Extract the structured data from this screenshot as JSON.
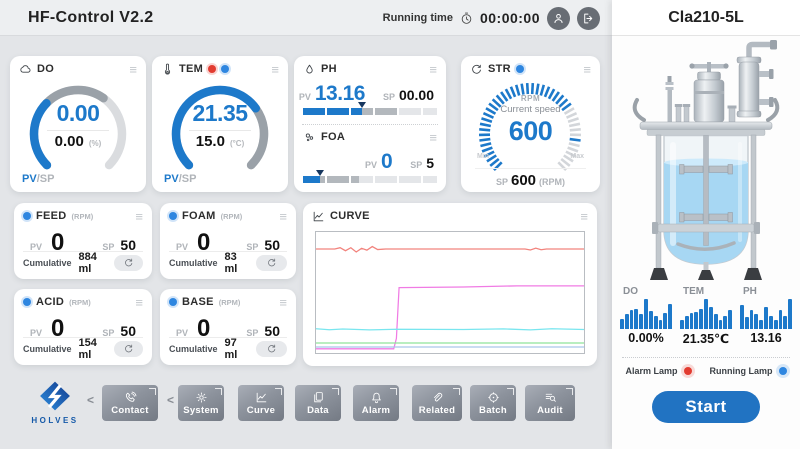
{
  "topbar": {
    "title": "HF-Control V2.2",
    "running_label": "Running time",
    "time": "00:00:00"
  },
  "cards": {
    "do": {
      "title": "DO",
      "pv": "0.00",
      "sp": "0.00",
      "unit": "(%)",
      "pv_label": "PV",
      "sp_label": "/SP",
      "fraction": 0.33
    },
    "tem": {
      "title": "TEM",
      "pv": "21.35",
      "sp": "15.0",
      "unit": "(°C)",
      "pv_label": "PV",
      "sp_label": "/SP",
      "fraction": 0.7
    },
    "ph": {
      "title": "PH",
      "pv_label": "PV",
      "pv": "13.16",
      "sp_label": "SP",
      "sp": "00.00",
      "fill_pct": 44,
      "mid_pct": 72
    },
    "foa": {
      "title": "FOA",
      "pv_label": "PV",
      "pv": "0",
      "sp_label": "SP",
      "sp": "5",
      "fill_pct": 13,
      "mid_pct": 42
    },
    "str": {
      "title": "STR",
      "rpm_label": "RPM",
      "sub_label": "Current speed",
      "value": "600",
      "sp_label": "SP",
      "sp": "600",
      "sp_unit": "(RPM)",
      "fraction": 0.72,
      "sp_mark": 0.86,
      "min_label": "Min",
      "max_label": "Max"
    }
  },
  "pumps": [
    {
      "title": "FEED",
      "unit": "(RPM)",
      "pv_label": "PV",
      "pv": "0",
      "sp_label": "SP",
      "sp": "50",
      "cum_label": "Cumulative",
      "cum": "884 ml"
    },
    {
      "title": "FOAM",
      "unit": "(RPM)",
      "pv_label": "PV",
      "pv": "0",
      "sp_label": "SP",
      "sp": "50",
      "cum_label": "Cumulative",
      "cum": "83 ml"
    },
    {
      "title": "ACID",
      "unit": "(RPM)",
      "pv_label": "PV",
      "pv": "0",
      "sp_label": "SP",
      "sp": "50",
      "cum_label": "Cumulative",
      "cum": "154 ml"
    },
    {
      "title": "BASE",
      "unit": "(RPM)",
      "pv_label": "PV",
      "pv": "0",
      "sp_label": "SP",
      "sp": "50",
      "cum_label": "Cumulative",
      "cum": "97 ml"
    }
  ],
  "curve": {
    "title": "CURVE"
  },
  "chart_data": {
    "type": "line",
    "title": "CURVE",
    "xlabel": "",
    "ylabel": "",
    "x_range": [
      0,
      100
    ],
    "y_range": [
      0,
      100
    ],
    "grid": false,
    "legend": "none",
    "series": [
      {
        "name": "red",
        "color": "#f2837d",
        "points": [
          [
            0,
            86
          ],
          [
            7,
            86
          ],
          [
            9,
            87
          ],
          [
            11,
            84.5
          ],
          [
            13,
            87
          ],
          [
            15,
            83.5
          ],
          [
            17,
            86.5
          ],
          [
            19,
            85
          ],
          [
            21,
            88
          ],
          [
            23,
            85.5
          ],
          [
            26,
            86
          ],
          [
            78,
            86
          ],
          [
            80,
            85.2
          ],
          [
            82,
            86.6
          ],
          [
            84,
            85.3
          ],
          [
            86,
            86
          ],
          [
            100,
            86
          ]
        ]
      },
      {
        "name": "magenta",
        "color": "#f07be4",
        "points": [
          [
            0,
            3.5
          ],
          [
            29,
            3.5
          ],
          [
            30,
            12
          ],
          [
            31,
            54
          ],
          [
            55,
            54.5
          ],
          [
            75,
            55.5
          ],
          [
            100,
            55.5
          ]
        ]
      },
      {
        "name": "cyan",
        "color": "#79e6ef",
        "points": [
          [
            0,
            20
          ],
          [
            5,
            19.2
          ],
          [
            10,
            19.8
          ],
          [
            20,
            19.1
          ],
          [
            30,
            19.6
          ],
          [
            55,
            19.4
          ],
          [
            70,
            19.9
          ],
          [
            80,
            19.1
          ],
          [
            88,
            20
          ],
          [
            100,
            19.4
          ]
        ]
      },
      {
        "name": "green",
        "color": "#8fe39b",
        "points": [
          [
            0,
            8.3
          ],
          [
            100,
            8.3
          ]
        ]
      },
      {
        "name": "blue",
        "color": "#a9c6ea",
        "points": [
          [
            0,
            5
          ],
          [
            100,
            5
          ]
        ]
      }
    ]
  },
  "right_panel": {
    "device": "Cla210-5L",
    "mini_charts": [
      {
        "label": "DO",
        "value": "0.00%",
        "bars": [
          0.35,
          0.5,
          0.62,
          0.68,
          0.5,
          1,
          0.6,
          0.42,
          0.3,
          0.52,
          0.82
        ]
      },
      {
        "label": "TEM",
        "value": "21.35℃",
        "bars": [
          0.3,
          0.42,
          0.52,
          0.58,
          0.68,
          1,
          0.72,
          0.5,
          0.3,
          0.42,
          0.62
        ]
      },
      {
        "label": "PH",
        "value": "13.16",
        "bars": [
          0.8,
          0.4,
          0.62,
          0.5,
          0.3,
          0.72,
          0.45,
          0.3,
          0.62,
          0.42,
          1
        ]
      }
    ],
    "alarm_label": "Alarm Lamp",
    "running_label": "Running Lamp",
    "start_label": "Start"
  },
  "nav": {
    "brand": "HOLVES",
    "contact_label": "Contact",
    "items": [
      {
        "label": "System"
      },
      {
        "label": "Curve"
      },
      {
        "label": "Data"
      },
      {
        "label": "Alarm"
      },
      {
        "label": "Related"
      },
      {
        "label": "Batch"
      },
      {
        "label": "Audit"
      }
    ]
  },
  "colors": {
    "accent": "#1d79ca",
    "alarm": "#e23b30",
    "running": "#2e86e0",
    "track": "#dadcdf",
    "track_mid": "#9aa1a8"
  }
}
